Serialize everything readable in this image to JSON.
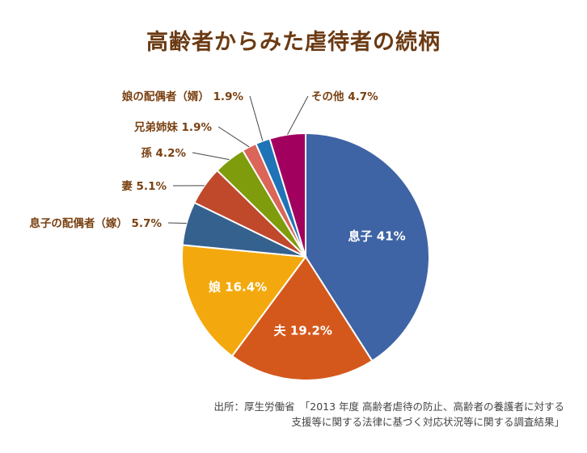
{
  "chart_data": {
    "type": "pie",
    "title": "高齢者からみた虐待者の続柄",
    "start": "12 o'clock, clockwise",
    "slices": [
      {
        "name": "息子",
        "value": 41,
        "pct_label": "41%",
        "color": "#3f64a5",
        "label_inside": true,
        "text_color": "#ffffff"
      },
      {
        "name": "夫",
        "value": 19.2,
        "pct_label": "19.2%",
        "color": "#d4581c",
        "label_inside": true,
        "text_color": "#ffffff"
      },
      {
        "name": "娘",
        "value": 16.4,
        "pct_label": "16.4%",
        "color": "#f3a90d",
        "label_inside": true,
        "text_color": "#ffffff"
      },
      {
        "name": "息子の配偶者（嫁）",
        "value": 5.7,
        "pct_label": "5.7%",
        "color": "#35618f",
        "label_inside": false,
        "text_color": "#7a4112"
      },
      {
        "name": "妻",
        "value": 5.1,
        "pct_label": "5.1%",
        "color": "#c0492c",
        "label_inside": false,
        "text_color": "#7a4112"
      },
      {
        "name": "孫",
        "value": 4.2,
        "pct_label": "4.2%",
        "color": "#7e9c0b",
        "label_inside": false,
        "text_color": "#7a4112"
      },
      {
        "name": "兄弟姉妹",
        "value": 1.9,
        "pct_label": "1.9%",
        "color": "#da6558",
        "label_inside": false,
        "text_color": "#7a4112"
      },
      {
        "name": "娘の配偶者（婿）",
        "value": 1.9,
        "pct_label": "1.9%",
        "color": "#1f73b6",
        "label_inside": false,
        "text_color": "#7a4112"
      },
      {
        "name": "その他",
        "value": 4.7,
        "pct_label": "4.7%",
        "color": "#a2005e",
        "label_inside": false,
        "text_color": "#7a4112"
      }
    ]
  },
  "source": {
    "line1": "出所：厚生労働省　「2013 年度 高齢者虐待の防止、高齢者の養護者に対する",
    "line2": "支援等に関する法律に基づく対応状況等に関する調査結果」"
  }
}
